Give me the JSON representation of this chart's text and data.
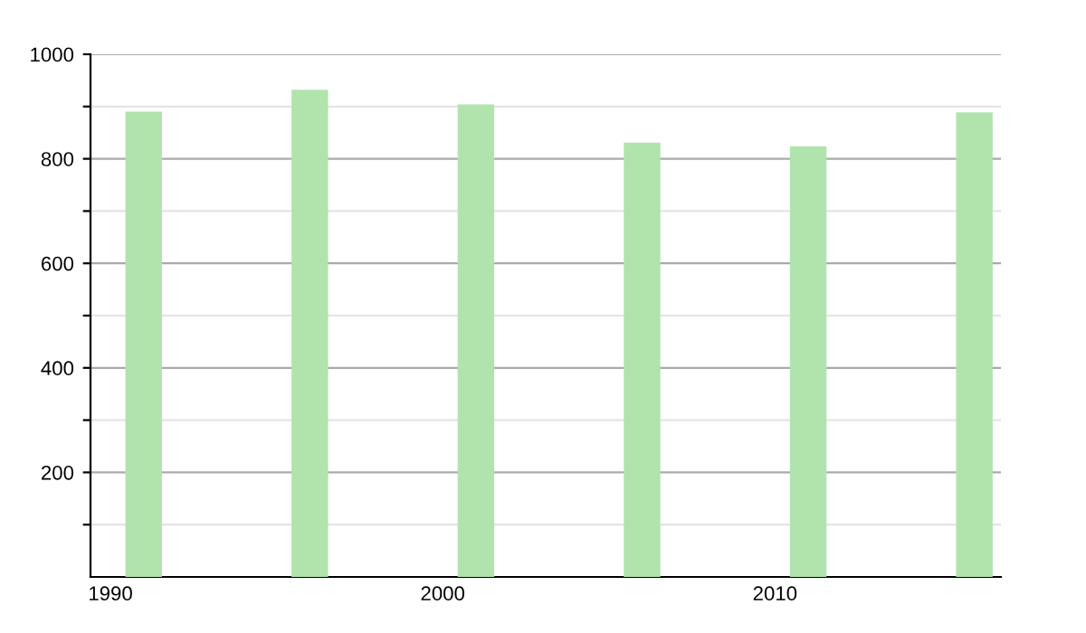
{
  "chart_data": {
    "type": "bar",
    "x": [
      1991,
      1996,
      2001,
      2006,
      2011,
      2016
    ],
    "values": [
      890,
      932,
      904,
      831,
      824,
      889
    ],
    "color": "#b0e4ac",
    "xlim": [
      1989.4,
      2016.8
    ],
    "xticks": [
      1990,
      2000,
      2010
    ],
    "ylim": [
      0,
      1000
    ],
    "yticks": [
      {
        "value": 100,
        "label": null
      },
      200,
      {
        "value": 300,
        "label": null
      },
      400,
      {
        "value": 500,
        "label": null
      },
      600,
      {
        "value": 700,
        "label": null
      },
      800,
      {
        "value": 900,
        "label": null
      },
      1000
    ],
    "grid": "y",
    "legend": false
  }
}
